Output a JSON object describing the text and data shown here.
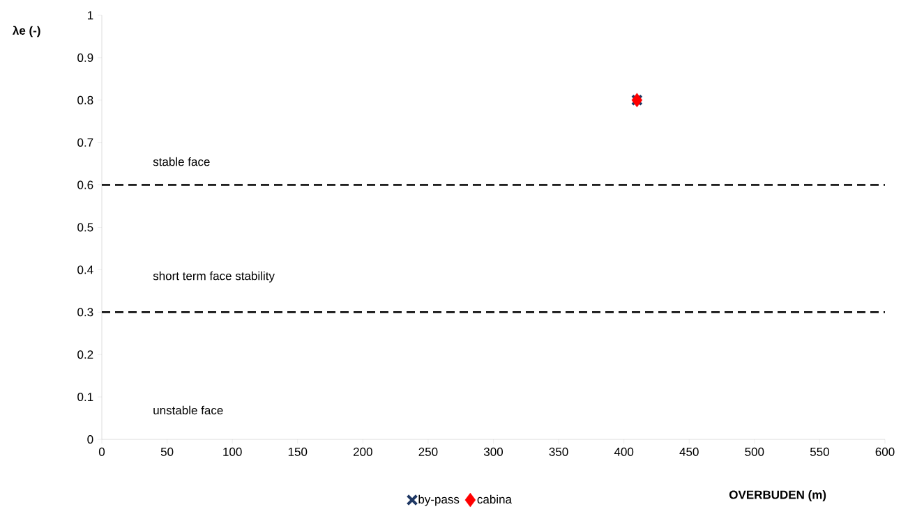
{
  "chart_data": {
    "type": "scatter",
    "xlabel": "OVERBUDEN (m)",
    "ylabel": "λe (-)",
    "x": [
      410
    ],
    "series": [
      {
        "name": "by-pass",
        "color": "#1f3864",
        "marker": "cross",
        "values": [
          0.8
        ]
      },
      {
        "name": "cabina",
        "color": "#ff0000",
        "marker": "diamond",
        "values": [
          0.8
        ]
      }
    ],
    "xlim": [
      0,
      600
    ],
    "xticks": [
      0,
      50,
      100,
      150,
      200,
      250,
      300,
      350,
      400,
      450,
      500,
      550,
      600
    ],
    "ylim": [
      0,
      1
    ],
    "yticks": [
      0,
      0.1,
      0.2,
      0.3,
      0.4,
      0.5,
      0.6,
      0.7,
      0.8,
      0.9,
      1
    ],
    "ref_lines": [
      {
        "axis": "y",
        "value": 0.6,
        "color": "#000000",
        "line_style": "dashed"
      },
      {
        "axis": "y",
        "value": 0.3,
        "color": "#000000",
        "line_style": "dashed"
      }
    ],
    "annotations": [
      "stable face",
      "short term face stability",
      "unstable face"
    ],
    "grid": false,
    "legend": "bottom"
  }
}
